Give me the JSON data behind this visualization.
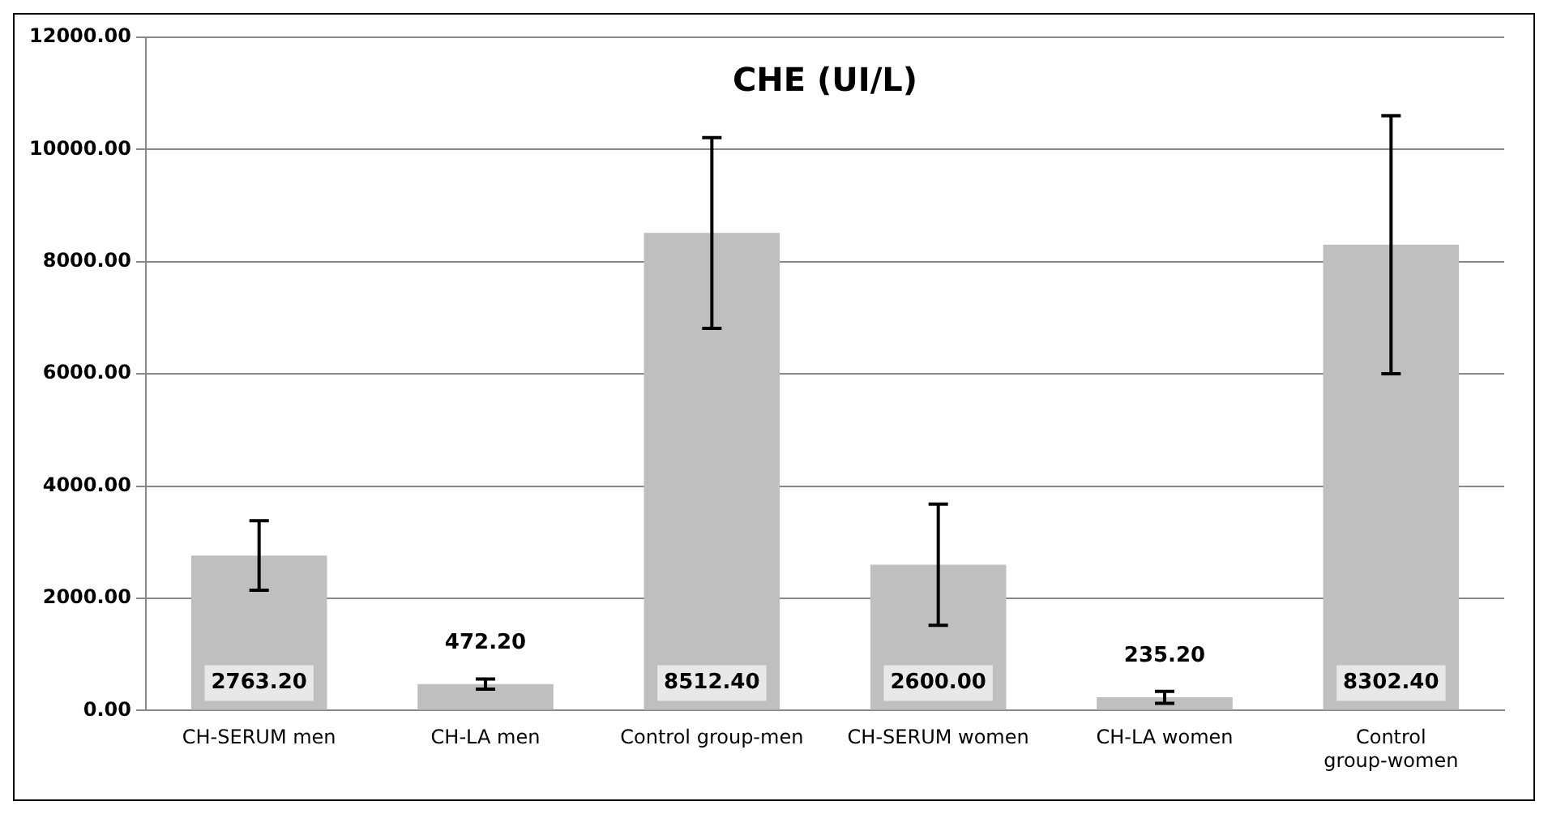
{
  "chart_data": {
    "type": "bar",
    "title": "CHE (UI/L)",
    "categories": [
      "CH-SERUM men",
      "CH-LA men",
      "Control group-men",
      "CH-SERUM women",
      "CH-LA women",
      "Control group-women"
    ],
    "values": [
      2763.2,
      472.2,
      8512.4,
      2600.0,
      235.2,
      8302.4
    ],
    "errors": [
      620,
      90,
      1700,
      1080,
      105,
      2300
    ],
    "value_labels": [
      "2763.20",
      "472.20",
      "8512.40",
      "2600.00",
      "235.20",
      "8302.40"
    ],
    "color": "#bfbfbf",
    "ylim": [
      0,
      12000
    ],
    "yticks": [
      {
        "value": 0,
        "label": "0.00"
      },
      {
        "value": 2000,
        "label": "2000.00"
      },
      {
        "value": 4000,
        "label": "4000.00"
      },
      {
        "value": 6000,
        "label": "6000.00"
      },
      {
        "value": 8000,
        "label": "8000.00"
      },
      {
        "value": 10000,
        "label": "10000.00"
      },
      {
        "value": 12000,
        "label": "12000.00"
      }
    ],
    "grid": "y",
    "legend": false
  }
}
